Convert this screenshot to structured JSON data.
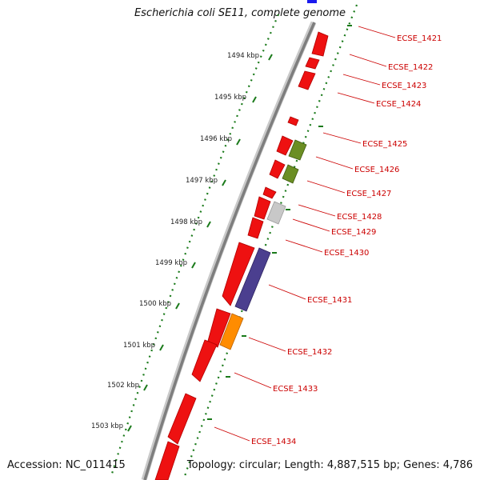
{
  "title": "Escherichia coli SE11, complete genome",
  "accession": "Accession: NC_011415",
  "summary": "Topology: circular; Length: 4,887,515 bp; Genes: 4,786",
  "ticks": [
    {
      "label": "1494 kbp"
    },
    {
      "label": "1495 kbp"
    },
    {
      "label": "1496 kbp"
    },
    {
      "label": "1497 kbp"
    },
    {
      "label": "1498 kbp"
    },
    {
      "label": "1499 kbp"
    },
    {
      "label": "1500 kbp"
    },
    {
      "label": "1501 kbp"
    },
    {
      "label": "1502 kbp"
    },
    {
      "label": "1503 kbp"
    }
  ],
  "gene_labels": [
    "ECSE_1421",
    "ECSE_1422",
    "ECSE_1423",
    "ECSE_1424",
    "ECSE_1425",
    "ECSE_1426",
    "ECSE_1427",
    "ECSE_1428",
    "ECSE_1429",
    "ECSE_1430",
    "ECSE_1431",
    "ECSE_1432",
    "ECSE_1433",
    "ECSE_1434"
  ],
  "colors": {
    "cds": "#ee1111",
    "cog_olive": "#6b8e23",
    "cog_grey": "#c8c8c8",
    "cog_purple": "#4b3f8f",
    "cog_orange": "#ff8c00",
    "cog_blue": "#1a1aee",
    "backbone": "#8a8a8a",
    "ticks": "#1a7a1a",
    "label": "#cc0000"
  }
}
